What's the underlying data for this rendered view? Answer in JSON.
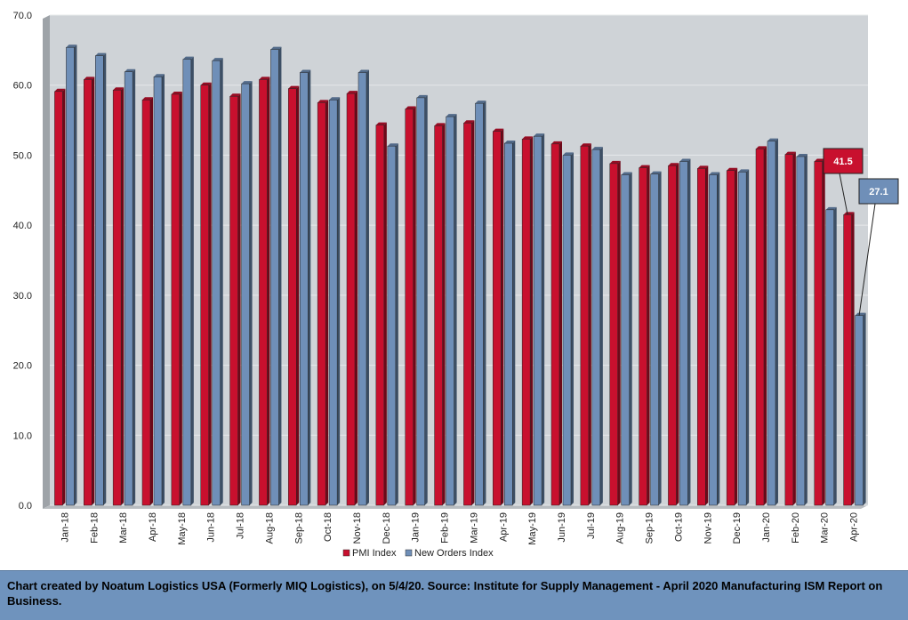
{
  "chart_data": {
    "type": "bar",
    "categories": [
      "Jan-18",
      "Feb-18",
      "Mar-18",
      "Apr-18",
      "May-18",
      "Jun-18",
      "Jul-18",
      "Aug-18",
      "Sep-18",
      "Oct-18",
      "Nov-18",
      "Dec-18",
      "Jan-19",
      "Feb-19",
      "Mar-19",
      "Apr-19",
      "May-19",
      "Jun-19",
      "Jul-19",
      "Aug-19",
      "Sep-19",
      "Oct-19",
      "Nov-19",
      "Dec-19",
      "Jan-20",
      "Feb-20",
      "Mar-20",
      "Apr-20"
    ],
    "series": [
      {
        "name": "PMI Index",
        "color": "#c8102e",
        "values": [
          59.1,
          60.8,
          59.3,
          57.9,
          58.7,
          60.0,
          58.4,
          60.8,
          59.5,
          57.5,
          58.8,
          54.3,
          56.6,
          54.2,
          54.6,
          53.4,
          52.3,
          51.6,
          51.3,
          48.8,
          48.2,
          48.5,
          48.1,
          47.8,
          50.9,
          50.1,
          49.1,
          41.5
        ]
      },
      {
        "name": "New Orders Index",
        "color": "#6f8fb8",
        "values": [
          65.4,
          64.2,
          61.9,
          61.2,
          63.7,
          63.5,
          60.2,
          65.1,
          61.8,
          57.9,
          61.8,
          51.3,
          58.2,
          55.5,
          57.4,
          51.7,
          52.7,
          50.0,
          50.8,
          47.2,
          47.3,
          49.1,
          47.2,
          47.6,
          52.0,
          49.8,
          42.2,
          27.1
        ]
      }
    ],
    "ylim": [
      0,
      70
    ],
    "yticks": [
      "0.0",
      "10.0",
      "20.0",
      "30.0",
      "40.0",
      "50.0",
      "60.0",
      "70.0"
    ],
    "grid": true,
    "legend_position": "bottom",
    "annotations": [
      {
        "series": "PMI Index",
        "category": "Apr-20",
        "text": "41.5",
        "color": "#c8102e"
      },
      {
        "series": "New Orders Index",
        "category": "Apr-20",
        "text": "27.1",
        "color": "#6f8fb8"
      }
    ]
  },
  "footer": {
    "text": "Chart created by Noatum Logistics USA (Formerly MIQ Logistics), on 5/4/20. Source: Institute for Supply Management - April 2020 Manufacturing ISM Report on Business."
  }
}
